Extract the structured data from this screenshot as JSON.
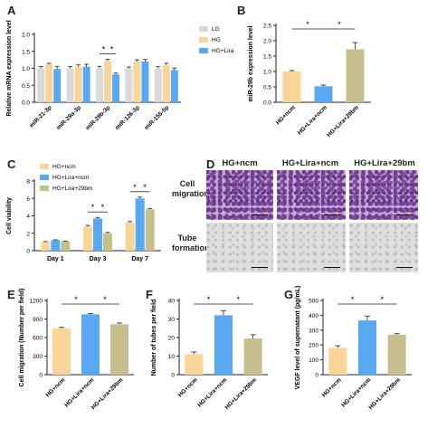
{
  "colors": {
    "lg": "#d9d9d9",
    "hg_ncm": "#f9d59a",
    "hg_lira_ncm": "#59a8f2",
    "hg_lira_29bm": "#c8bf8e",
    "axis": "#222222"
  },
  "panel_letters": [
    "A",
    "B",
    "C",
    "D",
    "E",
    "F",
    "G"
  ],
  "panel_d": {
    "columns": [
      "HG+ncm",
      "HG+Lira+ncm",
      "HG+Lira+29bm"
    ],
    "rows": [
      "Cell migration",
      "Tube formation"
    ]
  },
  "chart_data": [
    {
      "id": "A",
      "type": "bar",
      "categories": [
        "miR-21-3p",
        "miR-29a-3p",
        "miR-29b-3p",
        "miR-126-3p",
        "miR-155-5p"
      ],
      "series": [
        {
          "name": "LG",
          "values": [
            1.0,
            1.0,
            1.0,
            1.0,
            1.0
          ],
          "errors": [
            0.05,
            0.05,
            0.06,
            0.04,
            0.05
          ]
        },
        {
          "name": "HG",
          "values": [
            1.12,
            1.05,
            1.22,
            1.2,
            1.1
          ],
          "errors": [
            0.03,
            0.05,
            0.05,
            0.05,
            0.05
          ]
        },
        {
          "name": "HG+Lira",
          "values": [
            0.98,
            1.05,
            0.82,
            1.2,
            0.95
          ],
          "errors": [
            0.08,
            0.07,
            0.04,
            0.06,
            0.06
          ]
        }
      ],
      "ylabel": "Relative mRNA expression level",
      "ylim": [
        0,
        2.0
      ],
      "yticks": [
        "0.0",
        "0.5",
        "1.0",
        "1.5",
        "2.0"
      ],
      "legend": "top-right",
      "significance": [
        {
          "category": "miR-29b-3p",
          "from": 0,
          "to": 1,
          "label": "*"
        },
        {
          "category": "miR-29b-3p",
          "from": 1,
          "to": 2,
          "label": "*"
        }
      ]
    },
    {
      "id": "B",
      "type": "bar",
      "categories": [
        "HG+ncm",
        "HG+Lira+ncm",
        "HG+Lira+29bm"
      ],
      "values": [
        1.0,
        0.52,
        1.72
      ],
      "errors": [
        0.03,
        0.04,
        0.22
      ],
      "ylabel": "miR-29b expression level",
      "ylim": [
        0,
        2.5
      ],
      "yticks": [
        "0.0",
        "0.5",
        "1.0",
        "1.5",
        "2.0",
        "2.5"
      ],
      "significance": [
        {
          "from": 0,
          "to": 1,
          "label": "*"
        },
        {
          "from": 1,
          "to": 2,
          "label": "*"
        }
      ]
    },
    {
      "id": "C",
      "type": "bar",
      "categories": [
        "Day 1",
        "Day 3",
        "Day 7"
      ],
      "series": [
        {
          "name": "HG+ncm",
          "values": [
            1.0,
            2.75,
            3.25
          ],
          "errors": [
            0.05,
            0.15,
            0.1
          ]
        },
        {
          "name": "HG+Lira+ncm",
          "values": [
            1.2,
            3.7,
            6.0
          ],
          "errors": [
            0.05,
            0.12,
            0.15
          ]
        },
        {
          "name": "HG+Lira+29bm",
          "values": [
            1.05,
            2.0,
            4.75
          ],
          "errors": [
            0.04,
            0.1,
            0.1
          ]
        }
      ],
      "ylabel": "Cell viability",
      "ylim": [
        0,
        8
      ],
      "yticks": [
        "0",
        "2",
        "4",
        "6",
        "8"
      ],
      "legend": "top-left",
      "significance": [
        {
          "category": "Day 3",
          "from": 0,
          "to": 1,
          "label": "*"
        },
        {
          "category": "Day 3",
          "from": 1,
          "to": 2,
          "label": "*"
        },
        {
          "category": "Day 7",
          "from": 0,
          "to": 1,
          "label": "*"
        },
        {
          "category": "Day 7",
          "from": 1,
          "to": 2,
          "label": "*"
        }
      ]
    },
    {
      "id": "E",
      "type": "bar",
      "categories": [
        "HG+ncm",
        "HG+Lira+ncm",
        "HG+Lira+29bm"
      ],
      "values": [
        750,
        975,
        815
      ],
      "errors": [
        15,
        15,
        20
      ],
      "ylabel": "Cell migration (Number per field)",
      "ylim": [
        0,
        1200
      ],
      "yticks": [
        "0",
        "300",
        "600",
        "900",
        "1200"
      ],
      "significance": [
        {
          "from": 0,
          "to": 1,
          "label": "*"
        },
        {
          "from": 1,
          "to": 2,
          "label": "*"
        }
      ]
    },
    {
      "id": "F",
      "type": "bar",
      "categories": [
        "HG+ncm",
        "HG+Lira+ncm",
        "HG+Lira+29bm"
      ],
      "values": [
        11,
        32,
        19.5
      ],
      "errors": [
        1.2,
        2.5,
        2.0
      ],
      "ylabel": "Number of tubes per field",
      "ylim": [
        0,
        40
      ],
      "yticks": [
        "0",
        "10",
        "20",
        "30",
        "40"
      ],
      "significance": [
        {
          "from": 0,
          "to": 1,
          "label": "*"
        },
        {
          "from": 1,
          "to": 2,
          "label": "*"
        }
      ]
    },
    {
      "id": "G",
      "type": "bar",
      "categories": [
        "HG+ncm",
        "HG+Lira+ncm",
        "HG+Lira+29bm"
      ],
      "values": [
        180,
        365,
        268
      ],
      "errors": [
        15,
        30,
        8
      ],
      "ylabel": "VEGF level of supernatant (pg/mL)",
      "ylim": [
        0,
        500
      ],
      "yticks": [
        "0",
        "100",
        "200",
        "300",
        "400",
        "500"
      ],
      "significance": [
        {
          "from": 0,
          "to": 1,
          "label": "*"
        },
        {
          "from": 1,
          "to": 2,
          "label": "*"
        }
      ]
    }
  ]
}
